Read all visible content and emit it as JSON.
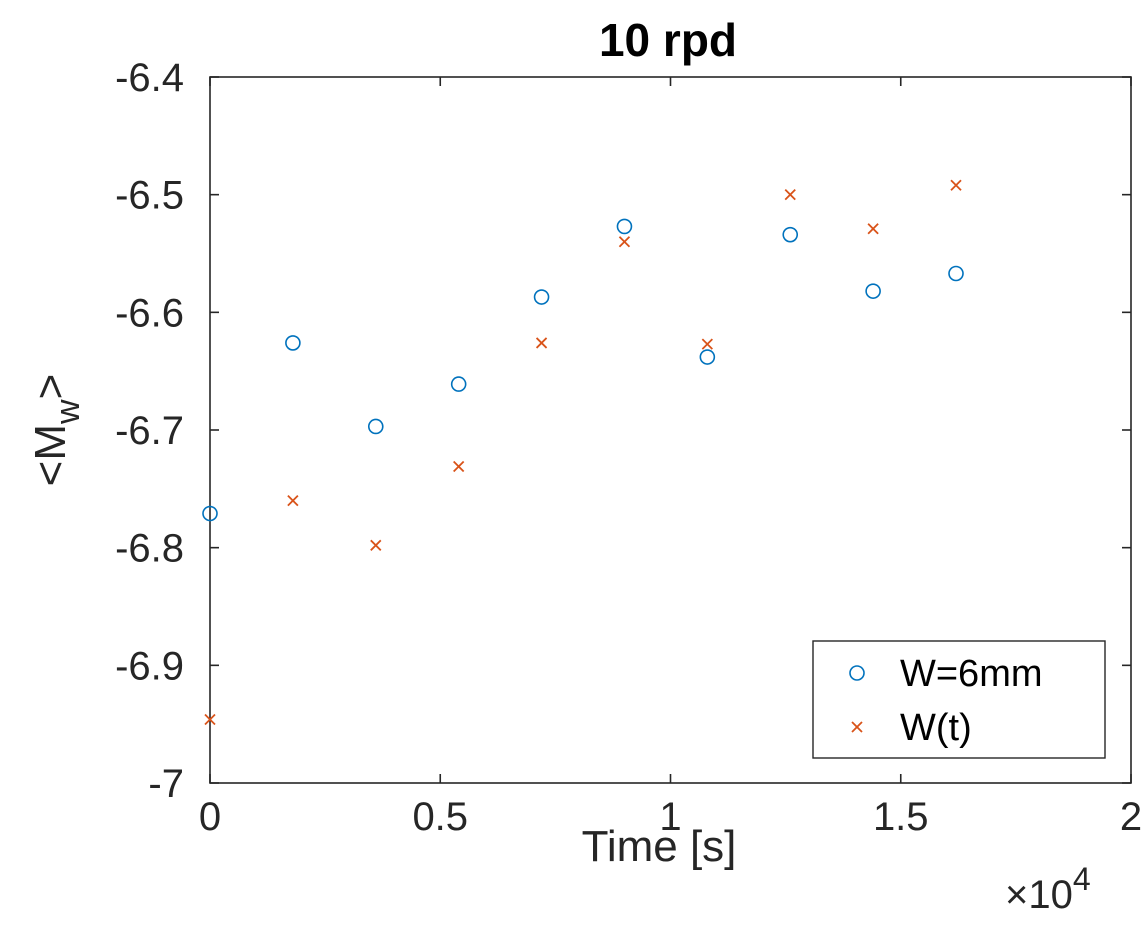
{
  "chart_data": {
    "type": "scatter",
    "title": "10 rpd",
    "xlabel": "Time [s]",
    "ylabel_main": "<M",
    "ylabel_sub": "w",
    "ylabel_end": ">",
    "x_multiplier_label": "×10",
    "x_multiplier_exponent": "4",
    "xlim": [
      0,
      2
    ],
    "ylim": [
      -7,
      -6.4
    ],
    "xticks": [
      "0",
      "0.5",
      "1",
      "1.5",
      "2"
    ],
    "yticks": [
      "-7",
      "-6.9",
      "-6.8",
      "-6.7",
      "-6.6",
      "-6.5",
      "-6.4"
    ],
    "x_tick_values": [
      0,
      0.5,
      1,
      1.5,
      2
    ],
    "y_tick_values": [
      -7,
      -6.9,
      -6.8,
      -6.7,
      -6.6,
      -6.5,
      -6.4
    ],
    "grid": false,
    "legend_position": "bottom-right",
    "series": [
      {
        "name": "W=6mm",
        "marker": "circle",
        "color": "#0072BD",
        "x": [
          0,
          0.18,
          0.36,
          0.54,
          0.72,
          0.9,
          1.08,
          1.26,
          1.44,
          1.62
        ],
        "y": [
          -6.771,
          -6.626,
          -6.697,
          -6.661,
          -6.587,
          -6.527,
          -6.638,
          -6.534,
          -6.582,
          -6.567
        ]
      },
      {
        "name": "W(t)",
        "marker": "x",
        "color": "#D95319",
        "x": [
          0,
          0.18,
          0.36,
          0.54,
          0.72,
          0.9,
          1.08,
          1.26,
          1.44,
          1.62
        ],
        "y": [
          -6.946,
          -6.76,
          -6.798,
          -6.731,
          -6.626,
          -6.54,
          -6.627,
          -6.5,
          -6.529,
          -6.492
        ]
      }
    ]
  }
}
